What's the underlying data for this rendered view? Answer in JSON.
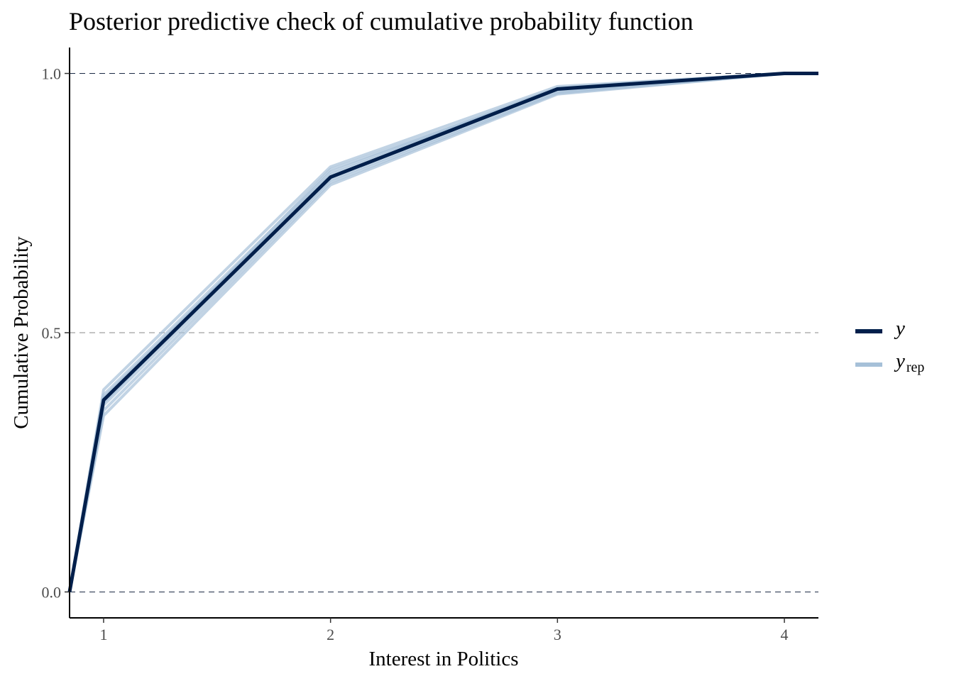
{
  "chart_data": {
    "type": "line",
    "title": "Posterior predictive check of cumulative probability function",
    "xlabel": "Interest in Politics",
    "ylabel": "Cumulative Probability",
    "x_ticks": [
      1,
      2,
      3,
      4
    ],
    "x_tick_labels": [
      "1",
      "2",
      "3",
      "4"
    ],
    "y_ticks": [
      0.0,
      0.5,
      1.0
    ],
    "y_tick_labels": [
      "0.0",
      "0.5",
      "1.0"
    ],
    "xlim": [
      0.85,
      4.15
    ],
    "ylim": [
      -0.05,
      1.05
    ],
    "grid": "dashed horizontal at y ticks",
    "legend_position": "right",
    "series": [
      {
        "name": "y",
        "color": "#011f4b",
        "x": [
          0.85,
          1,
          2,
          3,
          4,
          4.15
        ],
        "y": [
          0.0,
          0.37,
          0.8,
          0.97,
          1.0,
          1.0
        ]
      },
      {
        "name": "y_rep",
        "color": "#a6c0d8",
        "draws": [
          {
            "x": [
              0.85,
              1,
              2,
              3,
              4,
              4.15
            ],
            "y": [
              0.0,
              0.39,
              0.82,
              0.975,
              1.0,
              1.0
            ]
          },
          {
            "x": [
              0.85,
              1,
              2,
              3,
              4,
              4.15
            ],
            "y": [
              0.0,
              0.38,
              0.81,
              0.972,
              1.0,
              1.0
            ]
          },
          {
            "x": [
              0.85,
              1,
              2,
              3,
              4,
              4.15
            ],
            "y": [
              0.0,
              0.36,
              0.795,
              0.965,
              1.0,
              1.0
            ]
          },
          {
            "x": [
              0.85,
              1,
              2,
              3,
              4,
              4.15
            ],
            "y": [
              0.0,
              0.35,
              0.79,
              0.962,
              1.0,
              1.0
            ]
          },
          {
            "x": [
              0.85,
              1,
              2,
              3,
              4,
              4.15
            ],
            "y": [
              0.0,
              0.34,
              0.785,
              0.96,
              1.0,
              1.0
            ]
          },
          {
            "x": [
              0.85,
              1,
              2,
              3,
              4,
              4.15
            ],
            "y": [
              0.0,
              0.375,
              0.805,
              0.97,
              1.0,
              1.0
            ]
          },
          {
            "x": [
              0.85,
              1,
              2,
              3,
              4,
              4.15
            ],
            "y": [
              0.0,
              0.365,
              0.815,
              0.968,
              1.0,
              1.0
            ]
          }
        ]
      }
    ],
    "legend": {
      "y_label": "y",
      "yrep_label": "y",
      "yrep_sub": "rep"
    }
  }
}
